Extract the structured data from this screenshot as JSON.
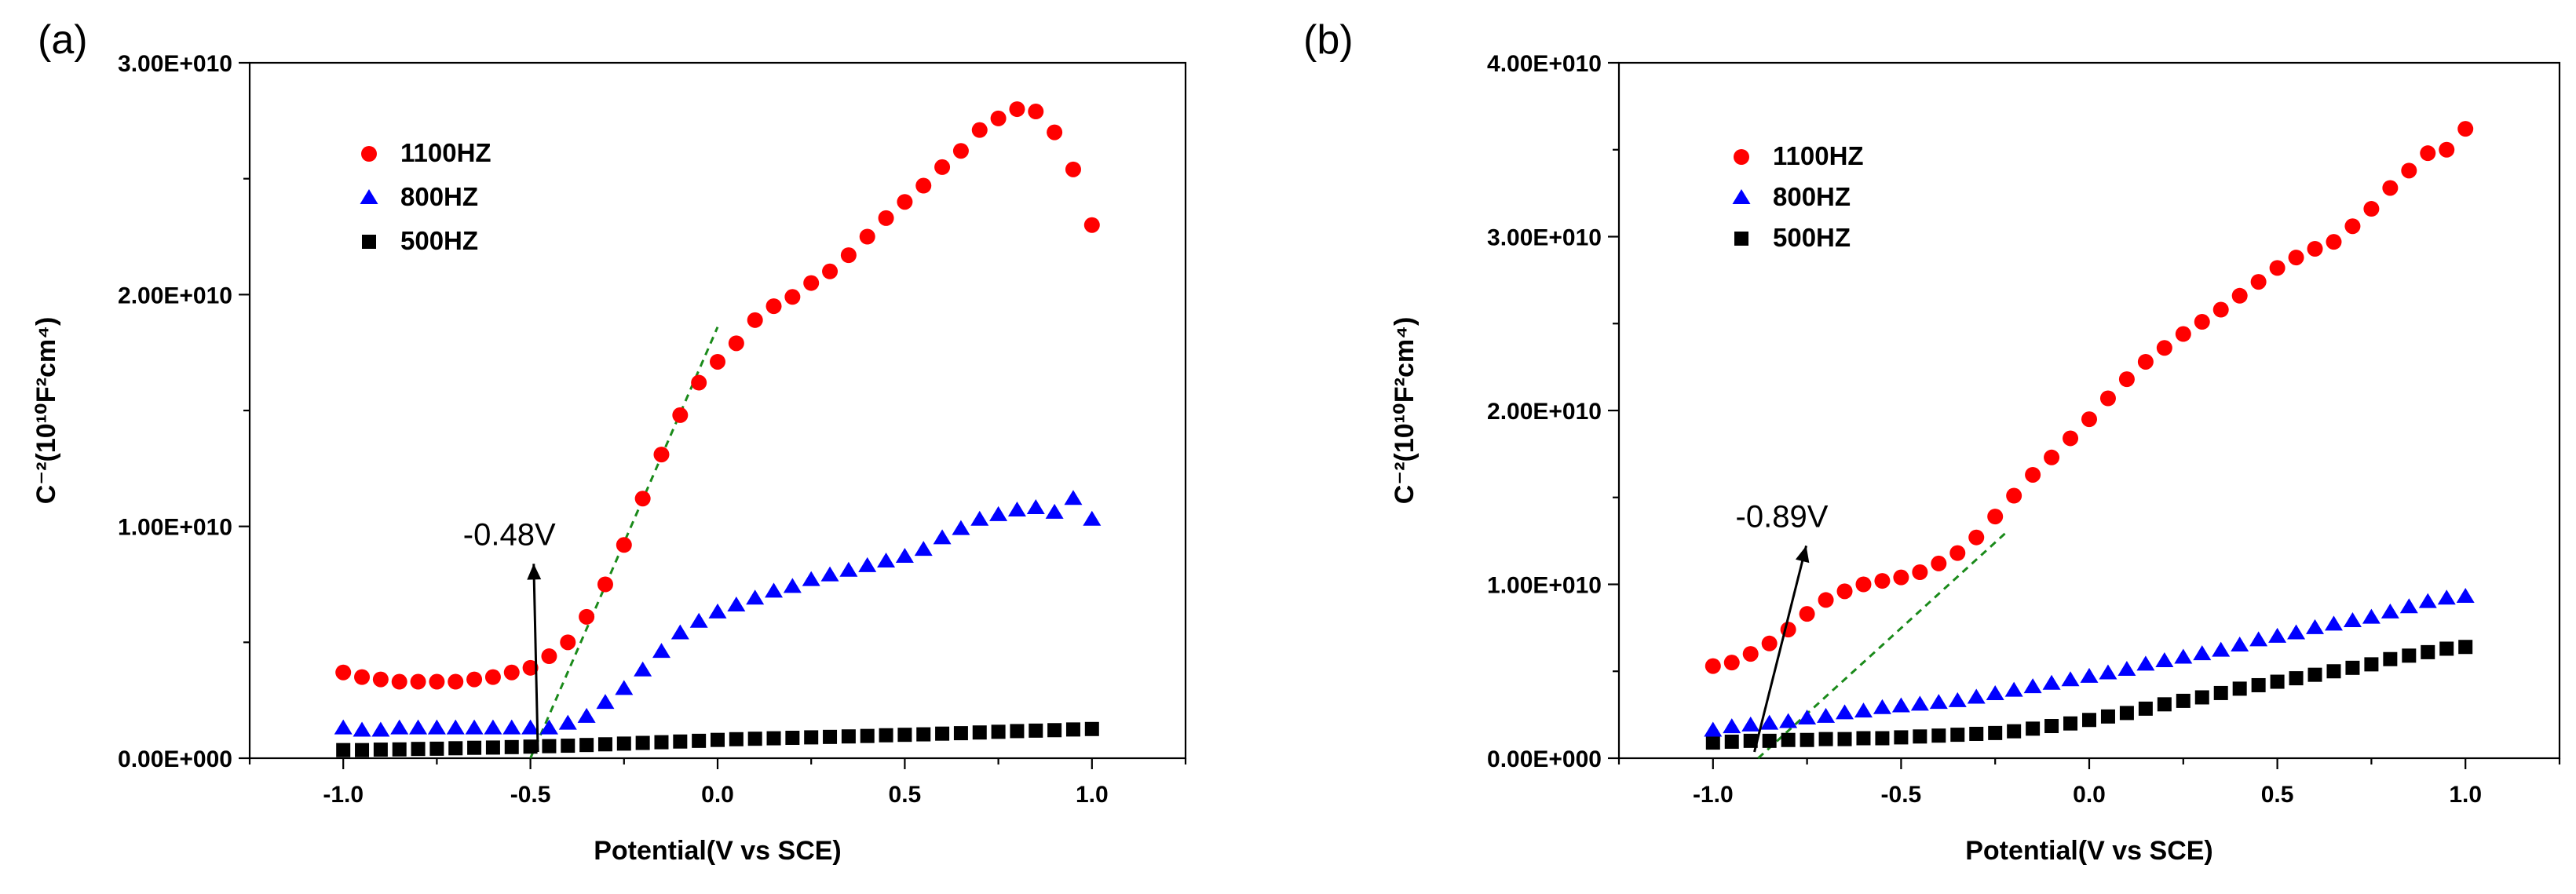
{
  "chart_data": [
    {
      "type": "scatter",
      "panel_label": "(a)",
      "xlabel": "Potential(V vs SCE)",
      "ylabel": "C⁻²(10¹⁰F²cm⁴)",
      "xlim": [
        -1.25,
        1.25
      ],
      "ylim": [
        0,
        30000000000
      ],
      "x_ticks": [
        -1.0,
        -0.5,
        0.0,
        0.5,
        1.0
      ],
      "x_tick_labels": [
        "-1.0",
        "-0.5",
        "0.0",
        "0.5",
        "1.0"
      ],
      "y_ticks": [
        0,
        10000000000,
        20000000000,
        30000000000
      ],
      "y_tick_labels": [
        "0.00E+000",
        "1.00E+010",
        "2.00E+010",
        "3.00E+010"
      ],
      "legend_position": "top-left",
      "series": [
        {
          "name": "1100HZ",
          "marker": "circle",
          "color": "#ff0000",
          "x": [
            -1.0,
            -0.95,
            -0.9,
            -0.85,
            -0.8,
            -0.75,
            -0.7,
            -0.65,
            -0.6,
            -0.55,
            -0.5,
            -0.45,
            -0.4,
            -0.35,
            -0.3,
            -0.25,
            -0.2,
            -0.15,
            -0.1,
            -0.05,
            0.0,
            0.05,
            0.1,
            0.15,
            0.2,
            0.25,
            0.3,
            0.35,
            0.4,
            0.45,
            0.5,
            0.55,
            0.6,
            0.65,
            0.7,
            0.75,
            0.8,
            0.85,
            0.9,
            0.95,
            1.0
          ],
          "y": [
            3700000000,
            3500000000,
            3400000000,
            3300000000,
            3300000000,
            3300000000,
            3300000000,
            3400000000,
            3500000000,
            3700000000,
            3900000000,
            4400000000,
            5000000000,
            6100000000,
            7500000000,
            9200000000,
            11200000000,
            13100000000,
            14800000000,
            16200000000,
            17100000000,
            17900000000,
            18900000000,
            19500000000,
            19900000000,
            20500000000,
            21000000000,
            21700000000,
            22500000000,
            23300000000,
            24000000000,
            24700000000,
            25500000000,
            26200000000,
            27100000000,
            27600000000,
            28000000000,
            27900000000,
            27000000000,
            25400000000,
            23000000000
          ]
        },
        {
          "name": "800HZ",
          "marker": "triangle",
          "color": "#0000ff",
          "x": [
            -1.0,
            -0.95,
            -0.9,
            -0.85,
            -0.8,
            -0.75,
            -0.7,
            -0.65,
            -0.6,
            -0.55,
            -0.5,
            -0.45,
            -0.4,
            -0.35,
            -0.3,
            -0.25,
            -0.2,
            -0.15,
            -0.1,
            -0.05,
            0.0,
            0.05,
            0.1,
            0.15,
            0.2,
            0.25,
            0.3,
            0.35,
            0.4,
            0.45,
            0.5,
            0.55,
            0.6,
            0.65,
            0.7,
            0.75,
            0.8,
            0.85,
            0.9,
            0.95,
            1.0
          ],
          "y": [
            1300000000,
            1200000000,
            1200000000,
            1300000000,
            1300000000,
            1300000000,
            1300000000,
            1300000000,
            1300000000,
            1300000000,
            1300000000,
            1300000000,
            1500000000,
            1800000000,
            2400000000,
            3000000000,
            3800000000,
            4600000000,
            5400000000,
            5900000000,
            6300000000,
            6600000000,
            6900000000,
            7200000000,
            7400000000,
            7700000000,
            7900000000,
            8100000000,
            8300000000,
            8500000000,
            8700000000,
            9000000000,
            9500000000,
            9900000000,
            10300000000,
            10500000000,
            10700000000,
            10800000000,
            10600000000,
            11200000000,
            10300000000
          ]
        },
        {
          "name": "500HZ",
          "marker": "square",
          "color": "#000000",
          "x": [
            -1.0,
            -0.95,
            -0.9,
            -0.85,
            -0.8,
            -0.75,
            -0.7,
            -0.65,
            -0.6,
            -0.55,
            -0.5,
            -0.45,
            -0.4,
            -0.35,
            -0.3,
            -0.25,
            -0.2,
            -0.15,
            -0.1,
            -0.05,
            0.0,
            0.05,
            0.1,
            0.15,
            0.2,
            0.25,
            0.3,
            0.35,
            0.4,
            0.45,
            0.5,
            0.55,
            0.6,
            0.65,
            0.7,
            0.75,
            0.8,
            0.85,
            0.9,
            0.95,
            1.0
          ],
          "y": [
            350000000,
            350000000,
            370000000,
            380000000,
            400000000,
            410000000,
            430000000,
            450000000,
            460000000,
            480000000,
            500000000,
            520000000,
            540000000,
            570000000,
            600000000,
            630000000,
            660000000,
            690000000,
            720000000,
            750000000,
            790000000,
            820000000,
            840000000,
            860000000,
            880000000,
            900000000,
            920000000,
            940000000,
            960000000,
            990000000,
            1010000000,
            1030000000,
            1060000000,
            1080000000,
            1110000000,
            1140000000,
            1170000000,
            1190000000,
            1210000000,
            1240000000,
            1260000000
          ]
        }
      ],
      "fit_line": {
        "x": [
          -0.5,
          0.0
        ],
        "y": [
          0,
          18600000000
        ]
      },
      "annotation": {
        "text": "-0.48V",
        "x": -0.48,
        "y": 0,
        "text_x": -0.68,
        "text_y": 9200000000
      }
    },
    {
      "type": "scatter",
      "panel_label": "(b)",
      "xlabel": "Potential(V vs SCE)",
      "ylabel": "C⁻²(10¹⁰F²cm⁴)",
      "xlim": [
        -1.25,
        1.25
      ],
      "ylim": [
        0,
        40000000000
      ],
      "x_ticks": [
        -1.0,
        -0.5,
        0.0,
        0.5,
        1.0
      ],
      "x_tick_labels": [
        "-1.0",
        "-0.5",
        "0.0",
        "0.5",
        "1.0"
      ],
      "y_ticks": [
        0,
        10000000000,
        20000000000,
        30000000000,
        40000000000
      ],
      "y_tick_labels": [
        "0.00E+000",
        "1.00E+010",
        "2.00E+010",
        "3.00E+010",
        "4.00E+010"
      ],
      "legend_position": "top-left",
      "series": [
        {
          "name": "1100HZ",
          "marker": "circle",
          "color": "#ff0000",
          "x": [
            -1.0,
            -0.95,
            -0.9,
            -0.85,
            -0.8,
            -0.75,
            -0.7,
            -0.65,
            -0.6,
            -0.55,
            -0.5,
            -0.45,
            -0.4,
            -0.35,
            -0.3,
            -0.25,
            -0.2,
            -0.15,
            -0.1,
            -0.05,
            0.0,
            0.05,
            0.1,
            0.15,
            0.2,
            0.25,
            0.3,
            0.35,
            0.4,
            0.45,
            0.5,
            0.55,
            0.6,
            0.65,
            0.7,
            0.75,
            0.8,
            0.85,
            0.9,
            0.95,
            1.0
          ],
          "y": [
            5300000000,
            5500000000,
            6000000000,
            6600000000,
            7400000000,
            8300000000,
            9100000000,
            9600000000,
            10000000000,
            10200000000,
            10400000000,
            10700000000,
            11200000000,
            11800000000,
            12700000000,
            13900000000,
            15100000000,
            16300000000,
            17300000000,
            18400000000,
            19500000000,
            20700000000,
            21800000000,
            22800000000,
            23600000000,
            24400000000,
            25100000000,
            25800000000,
            26600000000,
            27400000000,
            28200000000,
            28800000000,
            29300000000,
            29700000000,
            30600000000,
            31600000000,
            32800000000,
            33800000000,
            34800000000,
            35000000000,
            36200000000
          ]
        },
        {
          "name": "800HZ",
          "marker": "triangle",
          "color": "#0000ff",
          "x": [
            -1.0,
            -0.95,
            -0.9,
            -0.85,
            -0.8,
            -0.75,
            -0.7,
            -0.65,
            -0.6,
            -0.55,
            -0.5,
            -0.45,
            -0.4,
            -0.35,
            -0.3,
            -0.25,
            -0.2,
            -0.15,
            -0.1,
            -0.05,
            0.0,
            0.05,
            0.1,
            0.15,
            0.2,
            0.25,
            0.3,
            0.35,
            0.4,
            0.45,
            0.5,
            0.55,
            0.6,
            0.65,
            0.7,
            0.75,
            0.8,
            0.85,
            0.9,
            0.95,
            1.0
          ],
          "y": [
            1600000000,
            1800000000,
            1900000000,
            2000000000,
            2100000000,
            2300000000,
            2400000000,
            2600000000,
            2700000000,
            2900000000,
            3000000000,
            3100000000,
            3200000000,
            3300000000,
            3500000000,
            3700000000,
            3900000000,
            4100000000,
            4300000000,
            4500000000,
            4700000000,
            4900000000,
            5100000000,
            5400000000,
            5600000000,
            5800000000,
            6000000000,
            6200000000,
            6500000000,
            6800000000,
            7000000000,
            7200000000,
            7500000000,
            7700000000,
            7900000000,
            8100000000,
            8400000000,
            8700000000,
            9000000000,
            9200000000,
            9300000000
          ]
        },
        {
          "name": "500HZ",
          "marker": "square",
          "color": "#000000",
          "x": [
            -1.0,
            -0.95,
            -0.9,
            -0.85,
            -0.8,
            -0.75,
            -0.7,
            -0.65,
            -0.6,
            -0.55,
            -0.5,
            -0.45,
            -0.4,
            -0.35,
            -0.3,
            -0.25,
            -0.2,
            -0.15,
            -0.1,
            -0.05,
            0.0,
            0.05,
            0.1,
            0.15,
            0.2,
            0.25,
            0.3,
            0.35,
            0.4,
            0.45,
            0.5,
            0.55,
            0.6,
            0.65,
            0.7,
            0.75,
            0.8,
            0.85,
            0.9,
            0.95,
            1.0
          ],
          "y": [
            900000000,
            950000000,
            1000000000,
            1000000000,
            1050000000,
            1050000000,
            1100000000,
            1100000000,
            1150000000,
            1150000000,
            1200000000,
            1250000000,
            1300000000,
            1350000000,
            1400000000,
            1450000000,
            1550000000,
            1700000000,
            1850000000,
            2000000000,
            2200000000,
            2400000000,
            2600000000,
            2850000000,
            3100000000,
            3300000000,
            3500000000,
            3750000000,
            4000000000,
            4200000000,
            4400000000,
            4600000000,
            4800000000,
            5000000000,
            5200000000,
            5400000000,
            5700000000,
            5900000000,
            6100000000,
            6300000000,
            6400000000
          ]
        }
      ],
      "fit_line": {
        "x": [
          -0.88,
          -0.22
        ],
        "y": [
          0,
          13000000000
        ]
      },
      "annotation": {
        "text": "-0.89V",
        "x": -0.89,
        "y": 0,
        "text_x": -0.94,
        "text_y": 13300000000
      }
    }
  ]
}
